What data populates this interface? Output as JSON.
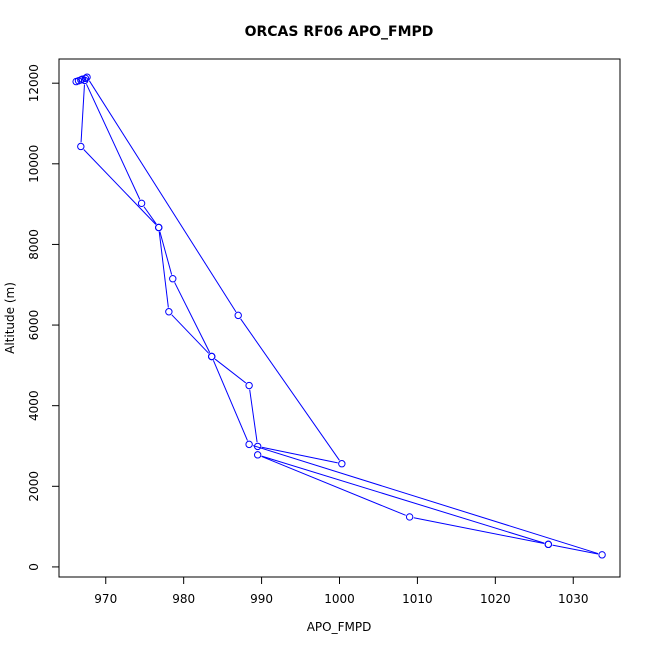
{
  "chart_data": {
    "type": "line",
    "title": "ORCAS RF06 APO_FMPD",
    "xlabel": "APO_FMPD",
    "ylabel": "Altitude (m)",
    "xlim": [
      964,
      1036
    ],
    "ylim": [
      -250,
      12600
    ],
    "xticks": [
      970,
      980,
      990,
      1000,
      1010,
      1020,
      1030
    ],
    "yticks": [
      0,
      2000,
      4000,
      6000,
      8000,
      10000,
      12000
    ],
    "grid": false,
    "series": [
      {
        "color": "#0000ff",
        "marker": "open-circle",
        "points": [
          {
            "x": 966.2,
            "y": 12040
          },
          {
            "x": 966.5,
            "y": 12060
          },
          {
            "x": 966.8,
            "y": 12080
          },
          {
            "x": 967.0,
            "y": 12100
          },
          {
            "x": 967.4,
            "y": 12120
          },
          {
            "x": 967.6,
            "y": 12150
          },
          {
            "x": 987.0,
            "y": 6240
          },
          {
            "x": 1000.3,
            "y": 2560
          },
          {
            "x": 989.5,
            "y": 2990
          },
          {
            "x": 988.4,
            "y": 4500
          },
          {
            "x": 983.6,
            "y": 5220
          },
          {
            "x": 978.1,
            "y": 6330
          },
          {
            "x": 976.8,
            "y": 8420
          },
          {
            "x": 974.6,
            "y": 9020
          },
          {
            "x": 967.3,
            "y": 12070
          },
          {
            "x": 966.8,
            "y": 10430
          },
          {
            "x": 976.8,
            "y": 8420
          },
          {
            "x": 978.6,
            "y": 7150
          },
          {
            "x": 983.6,
            "y": 5220
          },
          {
            "x": 988.4,
            "y": 3040
          },
          {
            "x": 1033.7,
            "y": 300
          },
          {
            "x": 1026.8,
            "y": 560
          },
          {
            "x": 989.5,
            "y": 2780
          },
          {
            "x": 1009.0,
            "y": 1240
          },
          {
            "x": 1026.8,
            "y": 560
          }
        ]
      }
    ]
  }
}
